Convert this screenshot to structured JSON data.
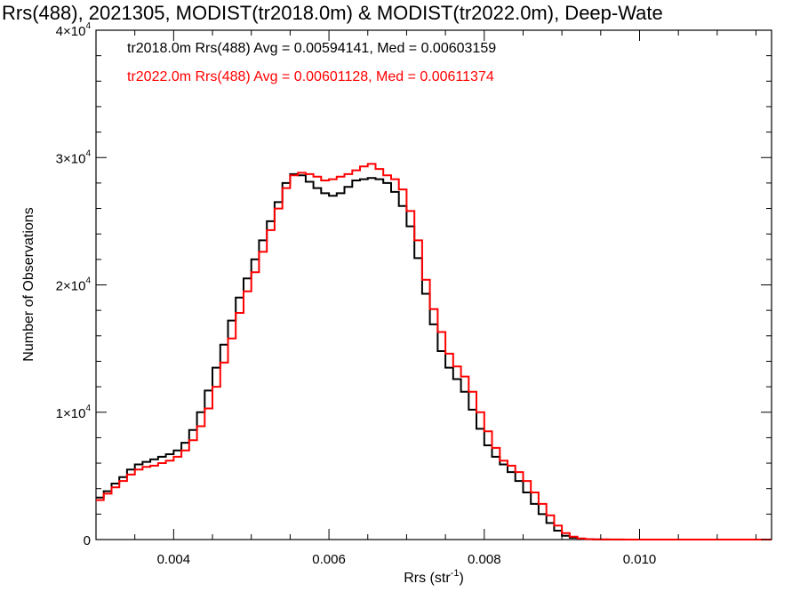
{
  "chart_data": {
    "type": "line",
    "title": "Rrs(488), 2021305, MODIST(tr2018.0m) & MODIST(tr2022.0m), Deep-Wate",
    "xlabel": "Rrs (str",
    "xlabel_sup": "-1",
    "xlabel_suffix": ")",
    "ylabel": "Number of Observations",
    "xlim": [
      0.003,
      0.0117
    ],
    "ylim": [
      0,
      40000
    ],
    "grid": false,
    "x_ticks": [
      {
        "value": 0.004,
        "label": "0.004"
      },
      {
        "value": 0.006,
        "label": "0.006"
      },
      {
        "value": 0.008,
        "label": "0.008"
      },
      {
        "value": 0.01,
        "label": "0.010"
      }
    ],
    "y_ticks": [
      {
        "value": 0,
        "label": "0",
        "sup": ""
      },
      {
        "value": 10000,
        "label": "1×10",
        "sup": "4"
      },
      {
        "value": 20000,
        "label": "2×10",
        "sup": "4"
      },
      {
        "value": 30000,
        "label": "3×10",
        "sup": "4"
      },
      {
        "value": 40000,
        "label": "4×10",
        "sup": "4"
      }
    ],
    "legend": [
      {
        "text": "tr2018.0m Rrs(488) Avg = 0.00594141, Med = 0.00603159",
        "color": "#000000"
      },
      {
        "text": "tr2022.0m Rrs(488) Avg = 0.00601128, Med = 0.00611374",
        "color": "#ff0000"
      }
    ],
    "series": [
      {
        "color": "#000000",
        "x": [
          0.003,
          0.0031,
          0.0032,
          0.0033,
          0.0034,
          0.0035,
          0.0036,
          0.0037,
          0.0038,
          0.0039,
          0.004,
          0.0041,
          0.0042,
          0.0043,
          0.0044,
          0.0045,
          0.0046,
          0.0047,
          0.0048,
          0.0049,
          0.005,
          0.0051,
          0.0052,
          0.0053,
          0.0054,
          0.0055,
          0.0056,
          0.0057,
          0.0058,
          0.0059,
          0.006,
          0.0061,
          0.0062,
          0.0063,
          0.0064,
          0.0065,
          0.0066,
          0.0067,
          0.0068,
          0.0069,
          0.007,
          0.0071,
          0.0072,
          0.0073,
          0.0074,
          0.0075,
          0.0076,
          0.0077,
          0.0078,
          0.0079,
          0.008,
          0.0081,
          0.0082,
          0.0083,
          0.0084,
          0.0085,
          0.0086,
          0.0087,
          0.0088,
          0.0089,
          0.009,
          0.0091,
          0.0092,
          0.0093,
          0.0094,
          0.0095,
          0.0096,
          0.0098,
          0.01,
          0.0105,
          0.011,
          0.0117
        ],
        "y": [
          3300,
          3800,
          4400,
          4900,
          5500,
          5900,
          6100,
          6300,
          6500,
          6700,
          7000,
          7600,
          8600,
          10000,
          11700,
          13500,
          15300,
          17200,
          19000,
          20500,
          22000,
          23500,
          25000,
          26500,
          28000,
          28700,
          28600,
          28100,
          27600,
          27200,
          27000,
          27200,
          27700,
          28200,
          28300,
          28400,
          28300,
          28000,
          27300,
          26200,
          24600,
          22100,
          19300,
          16900,
          14800,
          13500,
          12600,
          11600,
          10200,
          8700,
          7400,
          6500,
          5900,
          5300,
          4600,
          3700,
          2800,
          2000,
          1300,
          700,
          300,
          150,
          60,
          25,
          10,
          5,
          3,
          1,
          0,
          0,
          0,
          0
        ]
      },
      {
        "color": "#ff0000",
        "x": [
          0.003,
          0.0031,
          0.0032,
          0.0033,
          0.0034,
          0.0035,
          0.0036,
          0.0037,
          0.0038,
          0.0039,
          0.004,
          0.0041,
          0.0042,
          0.0043,
          0.0044,
          0.0045,
          0.0046,
          0.0047,
          0.0048,
          0.0049,
          0.005,
          0.0051,
          0.0052,
          0.0053,
          0.0054,
          0.0055,
          0.0056,
          0.0057,
          0.0058,
          0.0059,
          0.006,
          0.0061,
          0.0062,
          0.0063,
          0.0064,
          0.0065,
          0.0066,
          0.0067,
          0.0068,
          0.0069,
          0.007,
          0.0071,
          0.0072,
          0.0073,
          0.0074,
          0.0075,
          0.0076,
          0.0077,
          0.0078,
          0.0079,
          0.008,
          0.0081,
          0.0082,
          0.0083,
          0.0084,
          0.0085,
          0.0086,
          0.0087,
          0.0088,
          0.0089,
          0.009,
          0.0091,
          0.0092,
          0.0093,
          0.0094,
          0.0095,
          0.0096,
          0.0098,
          0.01,
          0.0105,
          0.011,
          0.0117
        ],
        "y": [
          3100,
          3600,
          4100,
          4600,
          5100,
          5500,
          5700,
          5800,
          6000,
          6200,
          6500,
          7000,
          7800,
          8900,
          10300,
          12000,
          13900,
          15800,
          17800,
          19500,
          21000,
          22600,
          24300,
          26000,
          27600,
          28600,
          28800,
          28700,
          28500,
          28200,
          28300,
          28500,
          28700,
          29000,
          29300,
          29500,
          29100,
          28600,
          28300,
          27500,
          25800,
          23500,
          20400,
          18100,
          16300,
          14600,
          13600,
          12800,
          11600,
          10000,
          8500,
          7200,
          6200,
          5800,
          5300,
          4600,
          3700,
          2800,
          1900,
          1100,
          500,
          220,
          90,
          35,
          15,
          7,
          4,
          2,
          0,
          0,
          0,
          0
        ]
      }
    ]
  }
}
